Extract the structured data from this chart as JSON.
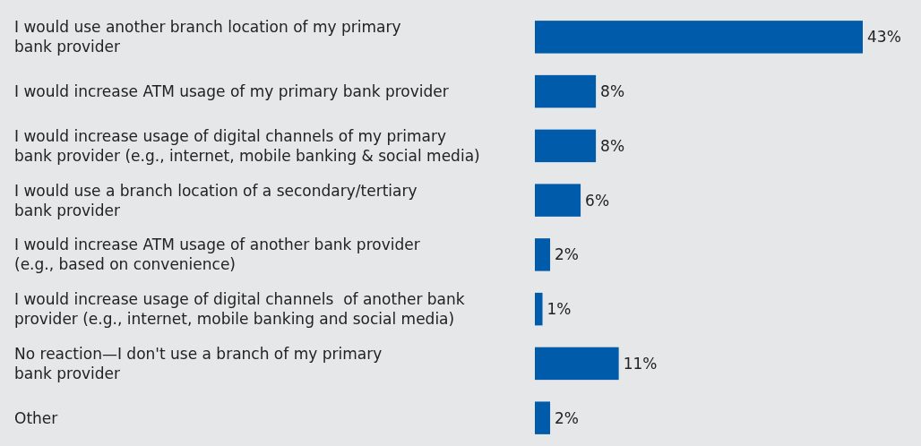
{
  "chart_data": {
    "type": "bar",
    "orientation": "horizontal",
    "categories": [
      "I would use another branch location of my primary\nbank provider",
      "I would increase ATM usage of my primary bank provider",
      "I would increase usage of digital channels of my primary\nbank provider (e.g., internet, mobile banking & social media)",
      "I would use a branch location of a secondary/tertiary\nbank provider",
      "I would increase ATM usage of another bank provider\n(e.g., based on convenience)",
      "I would increase usage of digital channels  of another bank\nprovider (e.g., internet, mobile banking and social media)",
      "No reaction—I don't use a branch of my primary\nbank provider",
      "Other"
    ],
    "values": [
      43,
      8,
      8,
      6,
      2,
      1,
      11,
      2
    ],
    "value_labels": [
      "43%",
      "8%",
      "8%",
      "6%",
      "2%",
      "1%",
      "11%",
      "2%"
    ],
    "color": "#005baa"
  }
}
